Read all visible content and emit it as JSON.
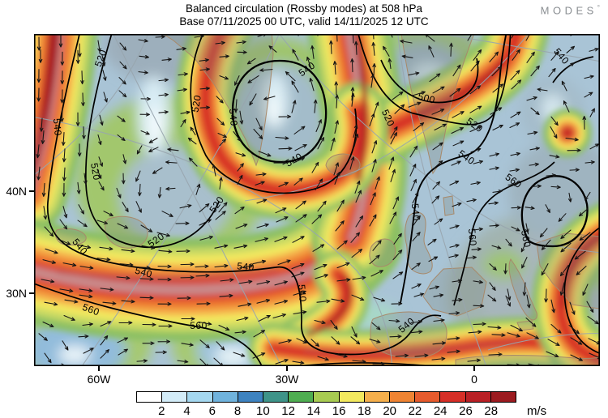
{
  "header": {
    "title": "Balanced circulation (Rossby modes) at 508 hPa",
    "subtitle": "Base 07/11/2025 00 UTC, valid 14/11/2025 12 UTC",
    "logo": "MODES",
    "logo_mark": "°"
  },
  "chart_data": {
    "type": "heatmap",
    "subtype": "filled-contour map with wind vector arrows and geopotential-like contour lines",
    "title": "Balanced circulation (Rossby modes) at 508 hPa",
    "subtitle": "Base 07/11/2025 00 UTC, valid 14/11/2025 12 UTC",
    "unit": "m/s",
    "symbols": "wind direction arrows",
    "colorbar": {
      "values": [
        2,
        4,
        6,
        8,
        10,
        12,
        14,
        16,
        18,
        20,
        22,
        24,
        26,
        28
      ],
      "unit": "m/s",
      "colors": [
        "#ffffff",
        "#d3ecf8",
        "#a5d8f0",
        "#70b3dd",
        "#3e83c0",
        "#3f9489",
        "#4fad51",
        "#a8cb52",
        "#f3e95f",
        "#f5af4c",
        "#ef8433",
        "#e65b2d",
        "#d62f27",
        "#b92025",
        "#9c1b20"
      ]
    },
    "x_ticks": [
      {
        "label": "60W",
        "x": 122
      },
      {
        "label": "30W",
        "x": 354
      },
      {
        "label": "0",
        "x": 585
      }
    ],
    "y_ticks": [
      {
        "label": "40N",
        "y": 236
      },
      {
        "label": "30N",
        "y": 362
      }
    ],
    "contour_labels": [
      {
        "v": "520",
        "x": 83,
        "y": 30,
        "r": -70
      },
      {
        "v": "540",
        "x": 28,
        "y": 115,
        "r": 85
      },
      {
        "v": "520",
        "x": 75,
        "y": 170,
        "r": 80
      },
      {
        "v": "520",
        "x": 201,
        "y": 86,
        "r": -80
      },
      {
        "v": "540",
        "x": 245,
        "y": 103,
        "r": 85
      },
      {
        "v": "540",
        "x": 321,
        "y": 156,
        "r": -30
      },
      {
        "v": "540",
        "x": 337,
        "y": 44,
        "r": -35
      },
      {
        "v": "520",
        "x": 226,
        "y": 211,
        "r": -55
      },
      {
        "v": "500",
        "x": 484,
        "y": 80,
        "r": 15
      },
      {
        "v": "520",
        "x": 436,
        "y": 104,
        "r": 65
      },
      {
        "v": "520",
        "x": 543,
        "y": 113,
        "r": 35
      },
      {
        "v": "540",
        "x": 533,
        "y": 153,
        "r": 35
      },
      {
        "v": "560",
        "x": 591,
        "y": 182,
        "r": 35
      },
      {
        "v": "540",
        "x": 650,
        "y": 28,
        "r": 50
      },
      {
        "v": "540",
        "x": 56,
        "y": 263,
        "r": 50
      },
      {
        "v": "520",
        "x": 151,
        "y": 255,
        "r": -35
      },
      {
        "v": "540",
        "x": 261,
        "y": 288,
        "r": 5
      },
      {
        "v": "540",
        "x": 135,
        "y": 295,
        "r": 15
      },
      {
        "v": "560",
        "x": 70,
        "y": 341,
        "r": 20
      },
      {
        "v": "560",
        "x": 203,
        "y": 361,
        "r": 0
      },
      {
        "v": "540",
        "x": 470,
        "y": 220,
        "r": 85
      },
      {
        "v": "560",
        "x": 540,
        "y": 251,
        "r": 85
      },
      {
        "v": "560",
        "x": 606,
        "y": 253,
        "r": 80
      },
      {
        "v": "540",
        "x": 460,
        "y": 360,
        "r": -40
      },
      {
        "v": "540",
        "x": 330,
        "y": 320,
        "r": 85
      }
    ]
  }
}
